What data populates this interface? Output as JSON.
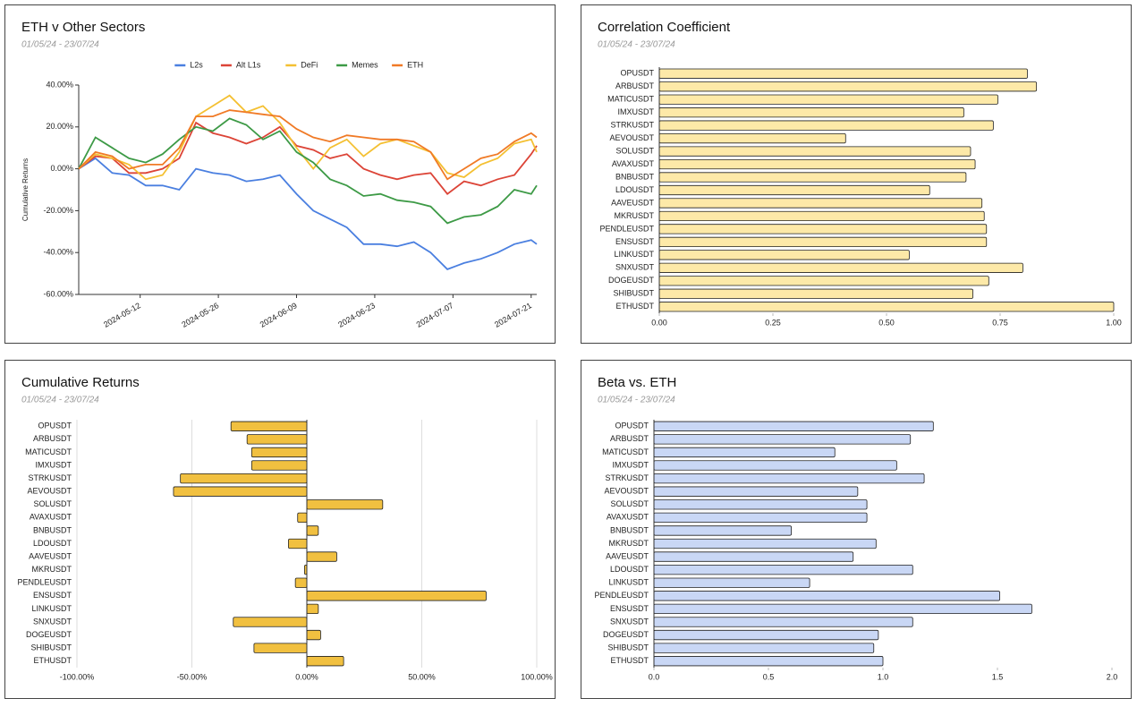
{
  "chart_data": [
    {
      "type": "line",
      "title": "ETH v Other Sectors",
      "subtitle": "01/05/24 - 23/07/24",
      "y_label": "Cumulative Returns",
      "x": [
        "2024-05-01",
        "2024-05-04",
        "2024-05-07",
        "2024-05-10",
        "2024-05-13",
        "2024-05-16",
        "2024-05-19",
        "2024-05-22",
        "2024-05-25",
        "2024-05-28",
        "2024-05-31",
        "2024-06-03",
        "2024-06-06",
        "2024-06-09",
        "2024-06-12",
        "2024-06-15",
        "2024-06-18",
        "2024-06-21",
        "2024-06-24",
        "2024-06-27",
        "2024-06-30",
        "2024-07-03",
        "2024-07-06",
        "2024-07-09",
        "2024-07-12",
        "2024-07-15",
        "2024-07-18",
        "2024-07-21",
        "2024-07-22"
      ],
      "xlim": [
        "2024-05-01",
        "2024-07-22"
      ],
      "xticks": [
        "2024-05-12",
        "2024-05-26",
        "2024-06-09",
        "2024-06-23",
        "2024-07-07",
        "2024-07-21"
      ],
      "ylim": [
        -60,
        40
      ],
      "yticks": [
        {
          "value": -60,
          "label": "-60.00%"
        },
        {
          "value": -40,
          "label": "-40.00%"
        },
        {
          "value": -20,
          "label": "-20.00%"
        },
        {
          "value": 0,
          "label": "0.00%"
        },
        {
          "value": 20,
          "label": "20.00%"
        },
        {
          "value": 40,
          "label": "40.00%"
        }
      ],
      "grid": false,
      "series": [
        {
          "name": "L2s",
          "color": "#4a7fe0",
          "values": [
            0,
            5,
            -2,
            -3,
            -8,
            -8,
            -10,
            0,
            -2,
            -3,
            -6,
            -5,
            -3,
            -12,
            -20,
            -24,
            -28,
            -36,
            -36,
            -37,
            -35,
            -40,
            -48,
            -45,
            -43,
            -40,
            -36,
            -34,
            -36
          ]
        },
        {
          "name": "Alt L1s",
          "color": "#dc4437",
          "values": [
            0,
            6,
            5,
            -2,
            -2,
            0,
            5,
            22,
            17,
            15,
            12,
            15,
            20,
            11,
            9,
            5,
            7,
            0,
            -3,
            -5,
            -3,
            -2,
            -12,
            -6,
            -8,
            -5,
            -3,
            7,
            11
          ]
        },
        {
          "name": "DeFi",
          "color": "#f4c032",
          "values": [
            0,
            7,
            5,
            2,
            -5,
            -3,
            8,
            25,
            30,
            35,
            27,
            30,
            22,
            10,
            0,
            10,
            14,
            6,
            12,
            14,
            11,
            8,
            -2,
            -4,
            2,
            5,
            12,
            14,
            8
          ]
        },
        {
          "name": "Memes",
          "color": "#3d9a46",
          "values": [
            0,
            15,
            10,
            5,
            3,
            7,
            14,
            20,
            18,
            24,
            21,
            14,
            18,
            8,
            3,
            -5,
            -8,
            -13,
            -12,
            -15,
            -16,
            -18,
            -26,
            -23,
            -22,
            -18,
            -10,
            -12,
            -8
          ]
        },
        {
          "name": "ETH",
          "color": "#f07a26",
          "values": [
            0,
            8,
            6,
            0,
            2,
            2,
            10,
            25,
            25,
            28,
            27,
            26,
            25,
            19,
            15,
            13,
            16,
            15,
            14,
            14,
            13,
            8,
            -5,
            0,
            5,
            7,
            13,
            17,
            15
          ]
        }
      ]
    },
    {
      "type": "bar",
      "horizontal": true,
      "title": "Correlation Coefficient",
      "subtitle": "01/05/24 - 23/07/24",
      "color": "#fde9a8",
      "grid": false,
      "categories": [
        "OPUSDT",
        "ARBUSDT",
        "MATICUSDT",
        "IMXUSDT",
        "STRKUSDT",
        "AEVOUSDT",
        "SOLUSDT",
        "AVAXUSDT",
        "BNBUSDT",
        "LDOUSDT",
        "AAVEUSDT",
        "MKRUSDT",
        "PENDLEUSDT",
        "ENSUSDT",
        "LINKUSDT",
        "SNXUSDT",
        "DOGEUSDT",
        "SHIBUSDT",
        "ETHUSDT"
      ],
      "values": [
        0.81,
        0.83,
        0.745,
        0.67,
        0.735,
        0.41,
        0.685,
        0.695,
        0.675,
        0.595,
        0.71,
        0.715,
        0.72,
        0.72,
        0.55,
        0.8,
        0.725,
        0.69,
        1.0
      ],
      "xlim": [
        0,
        1
      ],
      "xticks": [
        {
          "value": 0,
          "label": "0.00"
        },
        {
          "value": 0.25,
          "label": "0.25"
        },
        {
          "value": 0.5,
          "label": "0.50"
        },
        {
          "value": 0.75,
          "label": "0.75"
        },
        {
          "value": 1,
          "label": "1.00"
        }
      ]
    },
    {
      "type": "bar",
      "horizontal": true,
      "title": "Cumulative Returns",
      "subtitle": "01/05/24 - 23/07/24",
      "color": "#f1c040",
      "grid": true,
      "categories": [
        "OPUSDT",
        "ARBUSDT",
        "MATICUSDT",
        "IMXUSDT",
        "STRKUSDT",
        "AEVOUSDT",
        "SOLUSDT",
        "AVAXUSDT",
        "BNBUSDT",
        "LDOUSDT",
        "AAVEUSDT",
        "MKRUSDT",
        "PENDLEUSDT",
        "ENSUSDT",
        "LINKUSDT",
        "SNXUSDT",
        "DOGEUSDT",
        "SHIBUSDT",
        "ETHUSDT"
      ],
      "values": [
        -33,
        -26,
        -24,
        -24,
        -55,
        -58,
        33,
        -4,
        5,
        -8,
        13,
        -1,
        -5,
        78,
        5,
        -32,
        6,
        -23,
        16
      ],
      "xlim": [
        -100,
        100
      ],
      "xticks": [
        {
          "value": -100,
          "label": "-100.00%"
        },
        {
          "value": -50,
          "label": "-50.00%"
        },
        {
          "value": 0,
          "label": "0.00%"
        },
        {
          "value": 50,
          "label": "50.00%"
        },
        {
          "value": 100,
          "label": "100.00%"
        }
      ]
    },
    {
      "type": "bar",
      "horizontal": true,
      "title": "Beta vs. ETH",
      "subtitle": "01/05/24 - 23/07/24",
      "color": "#c9d7f5",
      "grid": false,
      "categories": [
        "OPUSDT",
        "ARBUSDT",
        "MATICUSDT",
        "IMXUSDT",
        "STRKUSDT",
        "AEVOUSDT",
        "SOLUSDT",
        "AVAXUSDT",
        "BNBUSDT",
        "MKRUSDT",
        "AAVEUSDT",
        "LDOUSDT",
        "LINKUSDT",
        "PENDLEUSDT",
        "ENSUSDT",
        "SNXUSDT",
        "DOGEUSDT",
        "SHIBUSDT",
        "ETHUSDT"
      ],
      "values": [
        1.22,
        1.12,
        0.79,
        1.06,
        1.18,
        0.89,
        0.93,
        0.93,
        0.6,
        0.97,
        0.87,
        1.13,
        0.68,
        1.51,
        1.65,
        1.13,
        0.98,
        0.96,
        1.0
      ],
      "xlim": [
        0,
        2
      ],
      "xticks": [
        {
          "value": 0,
          "label": "0.0"
        },
        0.5,
        {
          "value": 1,
          "label": "1.0"
        },
        1.5,
        {
          "value": 2,
          "label": "2.0"
        }
      ]
    }
  ]
}
